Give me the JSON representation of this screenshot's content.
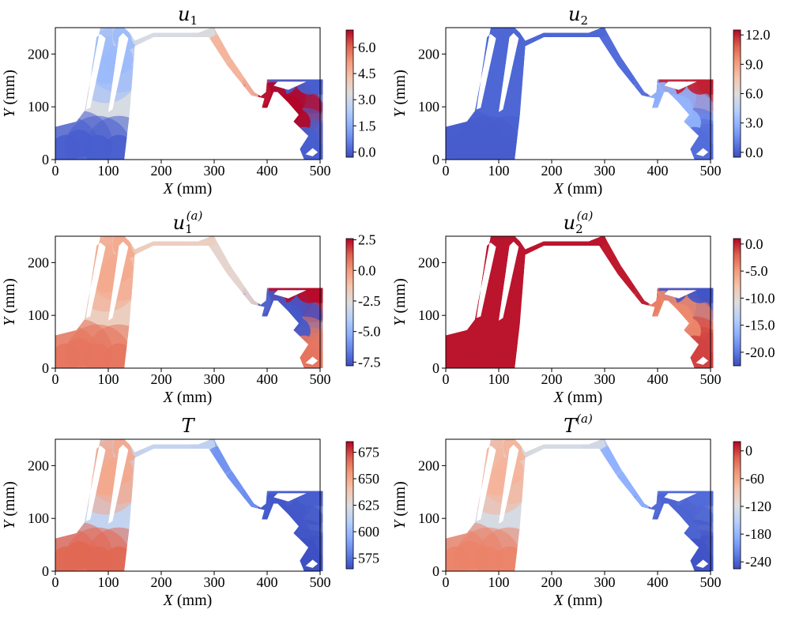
{
  "figure": {
    "description_free": true
  },
  "chart_data": [
    {
      "type": "heatmap",
      "title": "u",
      "title_sub": "1",
      "title_sup": "",
      "xlabel": "X (mm)",
      "ylabel": "Y (mm)",
      "xlim": [
        0,
        500
      ],
      "ylim": [
        0,
        250
      ],
      "xticks": [
        0,
        100,
        200,
        300,
        400,
        500
      ],
      "yticks": [
        0,
        100,
        200
      ],
      "colorbar": {
        "min": -0.3,
        "max": 7.0,
        "ticks": [
          "0.0",
          "1.5",
          "3.0",
          "4.5",
          "6.0"
        ],
        "tick_values": [
          0,
          1.5,
          3.0,
          4.5,
          6.0
        ]
      },
      "field": {
        "leftBottom": 0.0,
        "leftTop": 1.8,
        "midTop": 3.2,
        "rightMember": 4.6,
        "triTop": 0.0,
        "triBottom": 7.0,
        "foot": 0.0
      }
    },
    {
      "type": "heatmap",
      "title": "u",
      "title_sub": "2",
      "title_sup": "",
      "xlabel": "X (mm)",
      "ylabel": "Y (mm)",
      "xlim": [
        0,
        500
      ],
      "ylim": [
        0,
        250
      ],
      "xticks": [
        0,
        100,
        200,
        300,
        400,
        500
      ],
      "yticks": [
        0,
        100,
        200
      ],
      "colorbar": {
        "min": -0.5,
        "max": 12.5,
        "ticks": [
          "0.0",
          "3.0",
          "6.0",
          "9.0",
          "12.0"
        ],
        "tick_values": [
          0,
          3,
          6,
          9,
          12
        ]
      },
      "field": {
        "leftBottom": 0.0,
        "leftTop": 0.3,
        "midTop": 0.3,
        "rightMember": 0.5,
        "triTop": 12.0,
        "triBottom": 3.0,
        "foot": 0.5
      }
    },
    {
      "type": "heatmap",
      "title": "u",
      "title_sub": "1",
      "title_sup": "(a)",
      "xlabel": "X (mm)",
      "ylabel": "Y (mm)",
      "xlim": [
        0,
        500
      ],
      "ylim": [
        0,
        250
      ],
      "xticks": [
        0,
        100,
        200,
        300,
        400,
        500
      ],
      "yticks": [
        0,
        100,
        200
      ],
      "colorbar": {
        "min": -7.8,
        "max": 2.6,
        "ticks": [
          "2.5",
          "0.0",
          "-2.5",
          "-5.0",
          "-7.5"
        ],
        "tick_values": [
          2.5,
          0,
          -2.5,
          -5.0,
          -7.5
        ]
      },
      "field": {
        "leftBottom": 0.8,
        "leftTop": -0.5,
        "midTop": -1.8,
        "rightMember": -2.2,
        "triTop": 2.5,
        "triBottom": -7.5,
        "foot": 0.8
      }
    },
    {
      "type": "heatmap",
      "title": "u",
      "title_sub": "2",
      "title_sup": "(a)",
      "xlabel": "X (mm)",
      "ylabel": "Y (mm)",
      "xlim": [
        0,
        500
      ],
      "ylim": [
        0,
        250
      ],
      "xticks": [
        0,
        100,
        200,
        300,
        400,
        500
      ],
      "yticks": [
        0,
        100,
        200
      ],
      "colorbar": {
        "min": -22.5,
        "max": 1.0,
        "ticks": [
          "0.0",
          "-5.0",
          "-10.0",
          "-15.0",
          "-20.0"
        ],
        "tick_values": [
          0,
          -5,
          -10,
          -15,
          -20
        ]
      },
      "field": {
        "leftBottom": 0.5,
        "leftTop": 0.5,
        "midTop": 0.5,
        "rightMember": 0.3,
        "triTop": -22.0,
        "triBottom": -4.0,
        "foot": -1.0
      }
    },
    {
      "type": "heatmap",
      "title": "T",
      "title_sub": "",
      "title_sup": "",
      "xlabel": "X (mm)",
      "ylabel": "Y (mm)",
      "xlim": [
        0,
        500
      ],
      "ylim": [
        0,
        250
      ],
      "xticks": [
        0,
        100,
        200,
        300,
        400,
        500
      ],
      "yticks": [
        0,
        100,
        200
      ],
      "colorbar": {
        "min": 565,
        "max": 685,
        "ticks": [
          "675",
          "650",
          "625",
          "600",
          "575"
        ],
        "tick_values": [
          675,
          650,
          625,
          600,
          575
        ]
      },
      "field": {
        "leftBottom": 668,
        "leftTop": 650,
        "midTop": 615,
        "rightMember": 585,
        "triTop": 570,
        "triBottom": 568,
        "foot": 566
      }
    },
    {
      "type": "heatmap",
      "title": "T",
      "title_sub": "",
      "title_sup": "(a)",
      "xlabel": "X (mm)",
      "ylabel": "Y (mm)",
      "xlim": [
        0,
        500
      ],
      "ylim": [
        0,
        250
      ],
      "xticks": [
        0,
        100,
        200,
        300,
        400,
        500
      ],
      "yticks": [
        0,
        100,
        200
      ],
      "colorbar": {
        "min": -255,
        "max": 20,
        "ticks": [
          "0",
          "-60",
          "-120",
          "-180",
          "-240"
        ],
        "tick_values": [
          0,
          -60,
          -120,
          -180,
          -240
        ]
      },
      "field": {
        "leftBottom": -35,
        "leftTop": -70,
        "midTop": -125,
        "rightMember": -185,
        "triTop": -235,
        "triBottom": -240,
        "foot": -250
      }
    }
  ]
}
